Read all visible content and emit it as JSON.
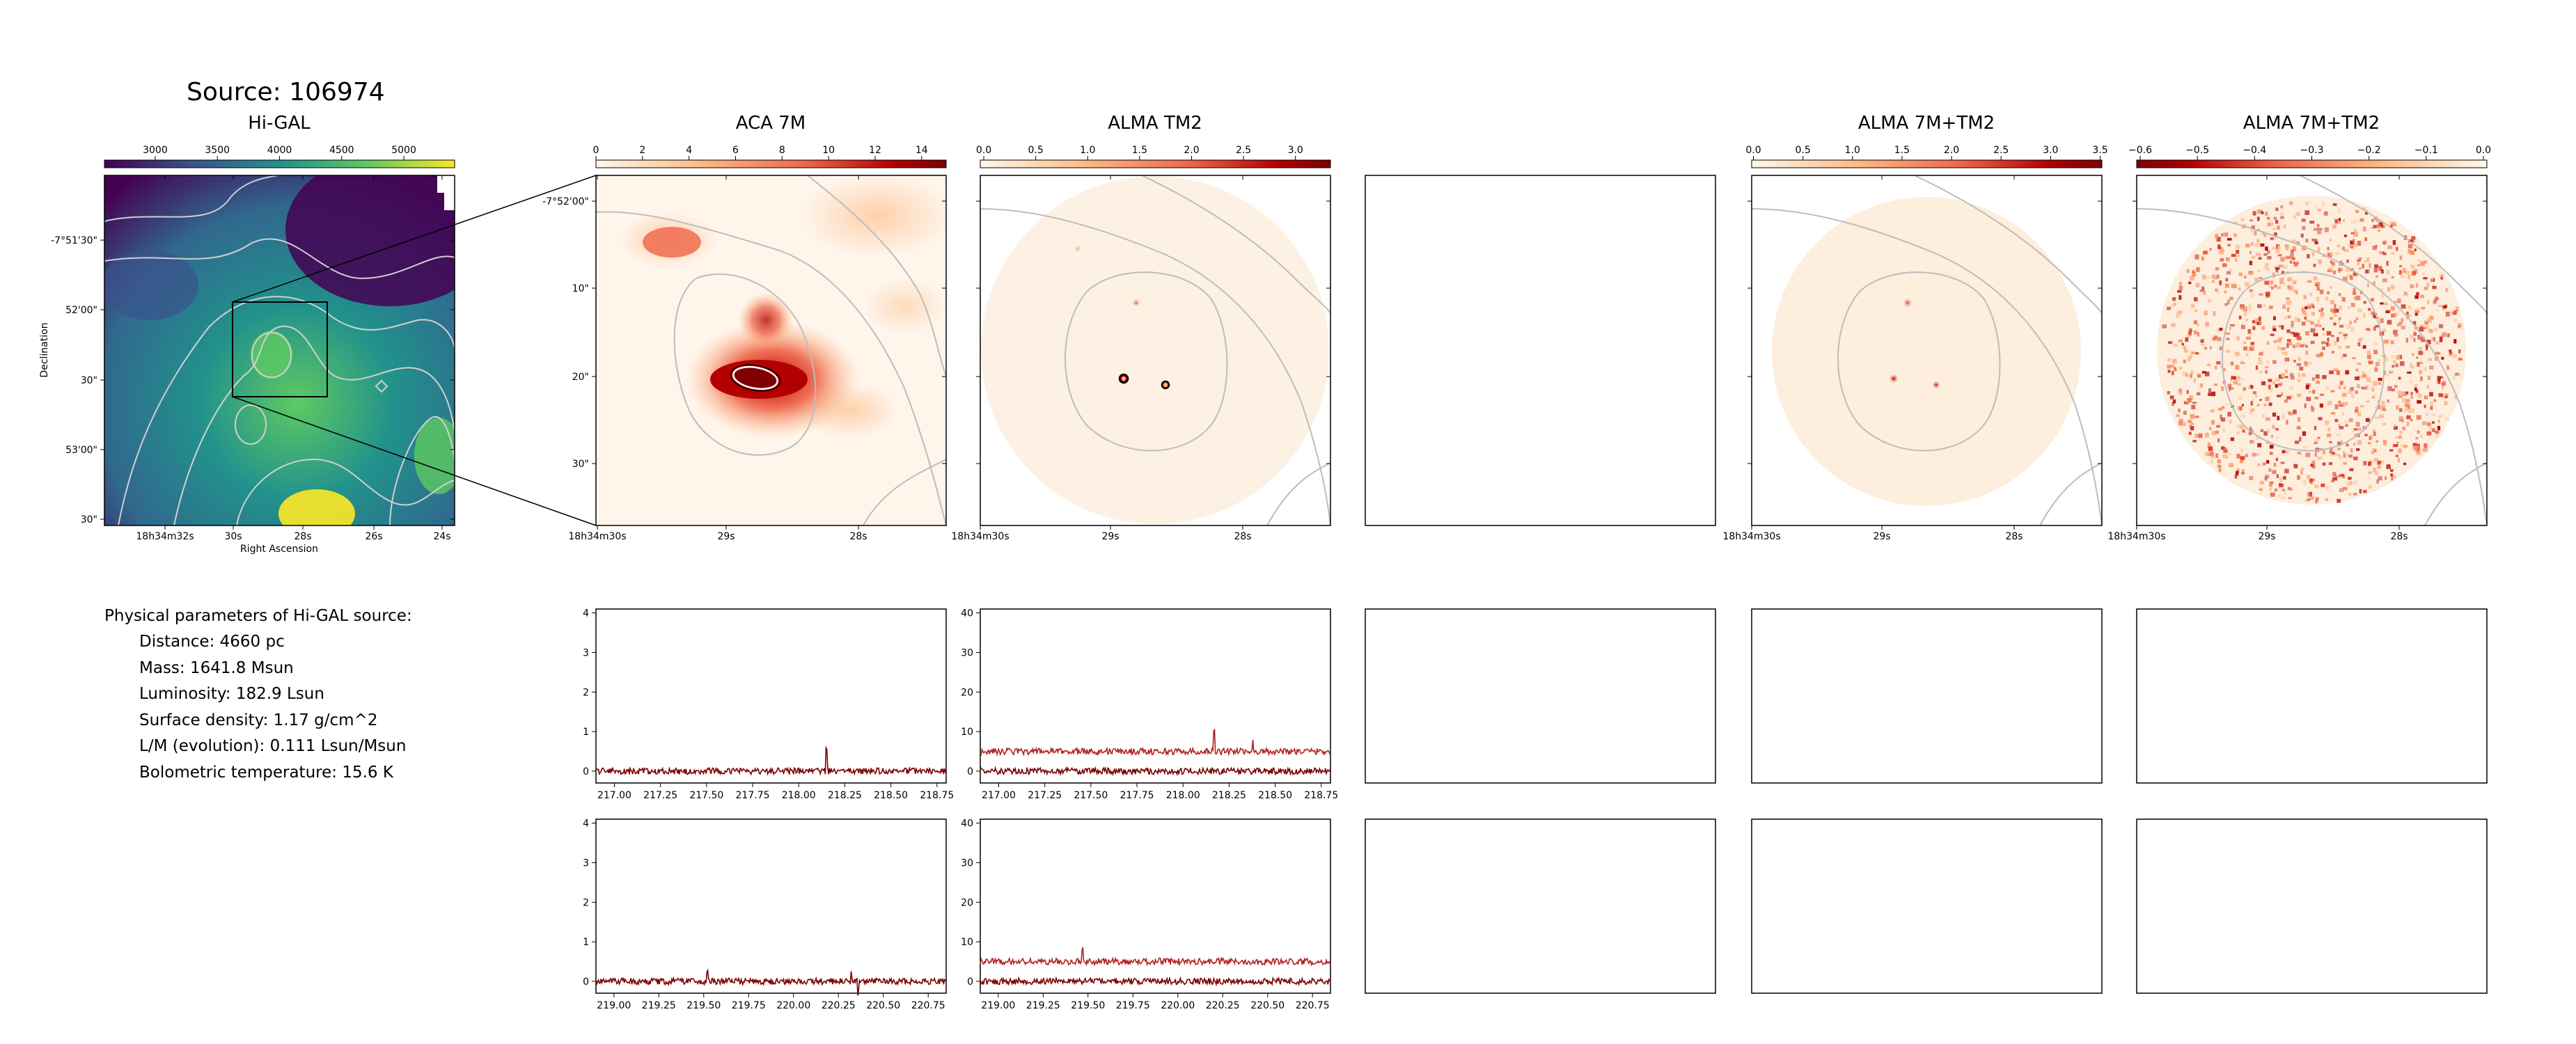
{
  "source": {
    "title": "Source: 106974"
  },
  "params": {
    "heading": "Physical parameters of Hi-GAL source:",
    "items": [
      "Distance: 4660 pc",
      "Mass: 1641.8 Msun",
      "Luminosity: 182.9 Lsun",
      "Surface density: 1.17 g/cm^2",
      "L/M (evolution): 0.111 Lsun/Msun",
      "Bolometric temperature: 15.6 K"
    ]
  },
  "colors": {
    "viridis_dark": "#440154",
    "viridis_mid": "#21918c",
    "viridis_light": "#fde725",
    "spec_dark": "#7a0000",
    "spec_light": "#b22222",
    "contour": "#c0c0c0"
  },
  "chart_data": [
    {
      "id": "higal",
      "type": "heatmap",
      "title": "Hi-GAL",
      "xlabel": "Right Ascension",
      "ylabel": "Declination",
      "colorbar_ticks": [
        "3000",
        "3500",
        "4000",
        "4500",
        "5000"
      ],
      "xticks": [
        "18h34m32s",
        "30s",
        "28s",
        "26s",
        "24s"
      ],
      "yticks": [
        "-7°51'30\"",
        "52'00\"",
        "30\"",
        "53'00\"",
        "30\""
      ],
      "colormap": "viridis"
    },
    {
      "id": "aca7m",
      "type": "heatmap",
      "title": "ACA 7M",
      "colorbar_ticks": [
        "0",
        "2",
        "4",
        "6",
        "8",
        "10",
        "12",
        "14"
      ],
      "xticks": [
        "18h34m30s",
        "29s",
        "28s"
      ],
      "yticks": [
        "-7°52'00\"",
        "10\"",
        "20\"",
        "30\""
      ],
      "colormap": "OrRd"
    },
    {
      "id": "tm2",
      "type": "heatmap",
      "title": "ALMA TM2",
      "colorbar_ticks": [
        "0.0",
        "0.5",
        "1.0",
        "1.5",
        "2.0",
        "2.5",
        "3.0"
      ],
      "xticks": [
        "18h34m30s",
        "29s",
        "28s"
      ],
      "colormap": "OrRd"
    },
    {
      "id": "comb",
      "type": "heatmap",
      "title": "ALMA 7M+TM2",
      "colorbar_ticks": [
        "0.0",
        "0.5",
        "1.0",
        "1.5",
        "2.0",
        "2.5",
        "3.0",
        "3.5"
      ],
      "xticks": [
        "18h34m30s",
        "29s",
        "28s"
      ],
      "colormap": "OrRd"
    },
    {
      "id": "resid",
      "type": "heatmap",
      "title": "ALMA 7M+TM2",
      "colorbar_ticks": [
        "−0.6",
        "−0.5",
        "−0.4",
        "−0.3",
        "−0.2",
        "−0.1",
        "0.0"
      ],
      "xticks": [
        "18h34m30s",
        "29s",
        "28s"
      ],
      "colormap": "OrRd_r"
    },
    {
      "id": "spec1",
      "type": "line",
      "xlim": [
        216.9,
        218.8
      ],
      "ylim": [
        -0.3,
        4.1
      ],
      "xticks": [
        "217.00",
        "217.25",
        "217.50",
        "217.75",
        "218.00",
        "218.25",
        "218.50",
        "218.75"
      ],
      "yticks": [
        "0",
        "1",
        "2",
        "3",
        "4"
      ],
      "series": [
        {
          "baseline": 0.0,
          "noise": 0.08,
          "peaks": [
            [
              218.15,
              0.55
            ]
          ]
        }
      ]
    },
    {
      "id": "spec2",
      "type": "line",
      "xlim": [
        216.9,
        218.8
      ],
      "ylim": [
        -3,
        41
      ],
      "xticks": [
        "217.00",
        "217.25",
        "217.50",
        "217.75",
        "218.00",
        "218.25",
        "218.50",
        "218.75"
      ],
      "yticks": [
        "0",
        "10",
        "20",
        "30",
        "40"
      ],
      "series": [
        {
          "baseline": 0.0,
          "noise": 0.8,
          "peaks": []
        },
        {
          "baseline": 5.0,
          "noise": 0.8,
          "peaks": [
            [
              218.17,
              5.5
            ],
            [
              218.38,
              3.5
            ]
          ]
        }
      ]
    },
    {
      "id": "spec3",
      "type": "line",
      "xlim": [
        218.9,
        220.85
      ],
      "ylim": [
        -0.3,
        4.1
      ],
      "xticks": [
        "219.00",
        "219.25",
        "219.50",
        "219.75",
        "220.00",
        "220.25",
        "220.50",
        "220.75"
      ],
      "yticks": [
        "0",
        "1",
        "2",
        "3",
        "4"
      ],
      "series": [
        {
          "baseline": 0.0,
          "noise": 0.08,
          "peaks": [
            [
              219.52,
              0.25
            ],
            [
              220.32,
              0.3
            ],
            [
              220.36,
              -0.3
            ]
          ]
        }
      ]
    },
    {
      "id": "spec4",
      "type": "line",
      "xlim": [
        218.9,
        220.85
      ],
      "ylim": [
        -3,
        41
      ],
      "xticks": [
        "219.00",
        "219.25",
        "219.50",
        "219.75",
        "220.00",
        "220.25",
        "220.50",
        "220.75"
      ],
      "yticks": [
        "0",
        "10",
        "20",
        "30",
        "40"
      ],
      "series": [
        {
          "baseline": 0.0,
          "noise": 0.8,
          "peaks": []
        },
        {
          "baseline": 5.0,
          "noise": 0.8,
          "peaks": [
            [
              219.47,
              3.0
            ],
            [
              219.9,
              1.5
            ]
          ]
        }
      ]
    }
  ]
}
